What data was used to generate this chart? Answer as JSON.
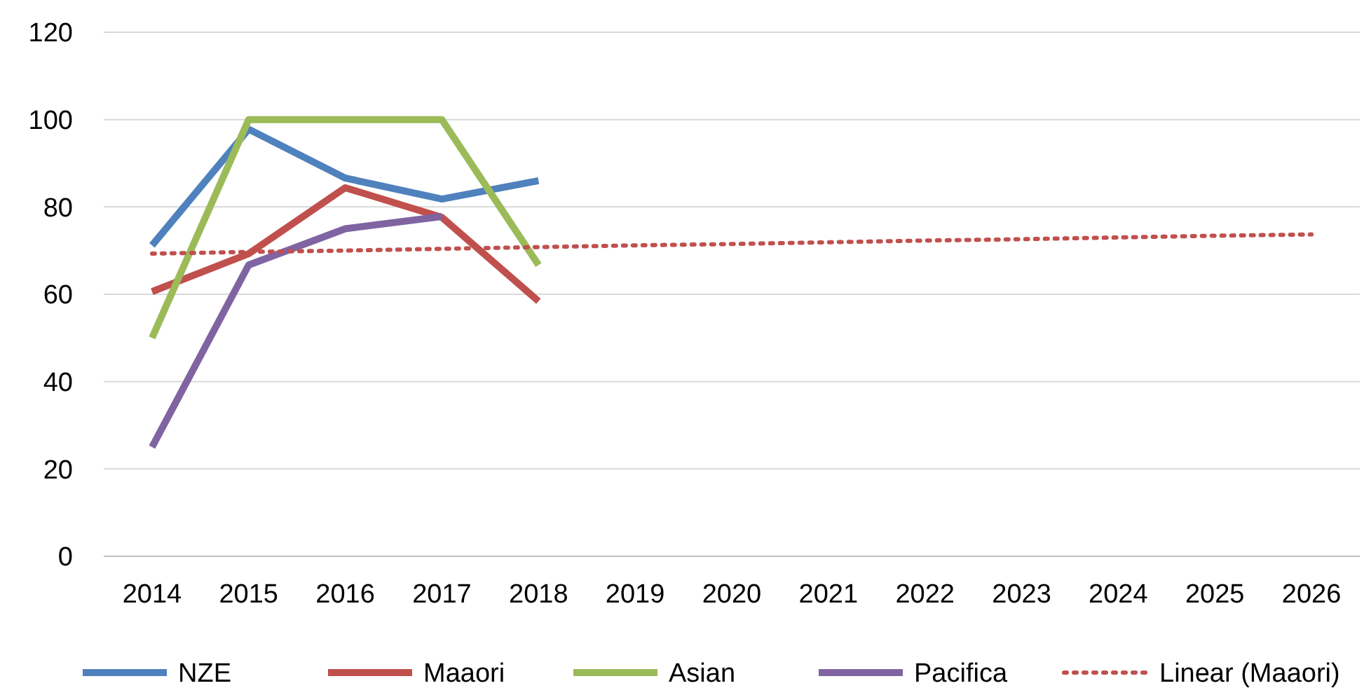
{
  "chart_data": {
    "type": "line",
    "categories": [
      "2014",
      "2015",
      "2016",
      "2017",
      "2018",
      "2019",
      "2020",
      "2021",
      "2022",
      "2023",
      "2024",
      "2025",
      "2026"
    ],
    "series": [
      {
        "name": "NZE",
        "color": "#4f81bd",
        "values": [
          71.2,
          97.8,
          86.6,
          81.8,
          86,
          null,
          null,
          null,
          null,
          null,
          null,
          null,
          null
        ]
      },
      {
        "name": "Maaori",
        "color": "#c0504d",
        "values": [
          60.6,
          69.3,
          84.4,
          77.6,
          58.4,
          null,
          null,
          null,
          null,
          null,
          null,
          null,
          null
        ]
      },
      {
        "name": "Asian",
        "color": "#9bbb59",
        "values": [
          50,
          100,
          100,
          100,
          66.7,
          null,
          null,
          null,
          null,
          null,
          null,
          null,
          null
        ]
      },
      {
        "name": "Pacifica",
        "color": "#8064a2",
        "values": [
          25,
          66.7,
          75,
          77.8,
          null,
          null,
          null,
          null,
          null,
          null,
          null,
          null,
          null
        ]
      },
      {
        "name": "Linear (Maaori)",
        "color": "#c0504d",
        "line_style": "dotted",
        "values": [
          69.3,
          69.7,
          70.0,
          70.4,
          70.8,
          71.2,
          71.5,
          71.9,
          72.3,
          72.6,
          73.0,
          73.4,
          73.7
        ]
      }
    ],
    "ylim": [
      0,
      120
    ],
    "yticks": [
      0,
      20,
      40,
      60,
      80,
      100,
      120
    ],
    "grid": "y",
    "legend": "bottom",
    "marker": "none"
  }
}
